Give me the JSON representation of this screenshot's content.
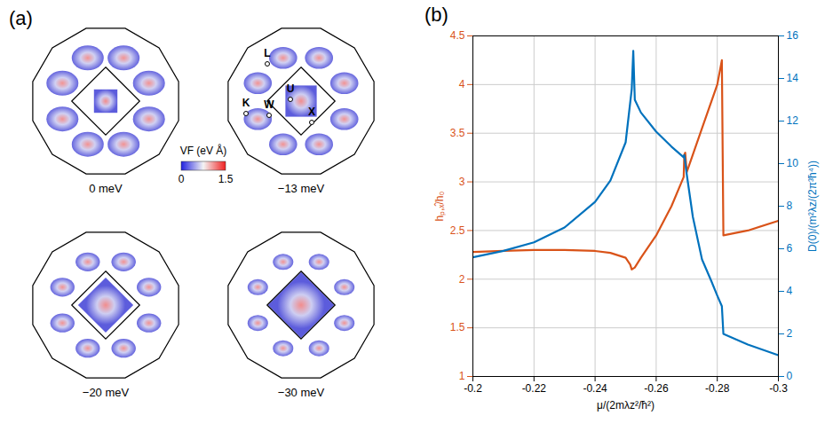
{
  "figure_a": {
    "panel_label": "(a)",
    "captions": [
      "0 meV",
      "−13 meV",
      "−20 meV",
      "−30 meV"
    ],
    "points": [
      "L",
      "K",
      "W",
      "U",
      "X"
    ],
    "colorbar": {
      "title": "VF (eV Å)",
      "range": [
        0,
        1.5
      ],
      "ticks": [
        0,
        1.5
      ]
    }
  },
  "chart_data": {
    "type": "line",
    "panel_label": "(b)",
    "xlabel": "μ/(2mλz²/ħ²)",
    "ylabel": "hₚ,ₓ̂/h₀",
    "y2label": "D(0)/(m²λz/(2π³ħ⁴))",
    "xlim": [
      -0.2,
      -0.3
    ],
    "xticks": [
      -0.2,
      -0.22,
      -0.24,
      -0.26,
      -0.28,
      -0.3
    ],
    "ylim": [
      1,
      4.5
    ],
    "yticks": [
      1,
      1.5,
      2,
      2.5,
      3,
      3.5,
      4,
      4.5
    ],
    "y2lim": [
      0,
      16
    ],
    "y2ticks": [
      0,
      2,
      4,
      6,
      8,
      10,
      12,
      14,
      16
    ],
    "grid": true,
    "series": [
      {
        "name": "hₚ,ₓ̂/h₀",
        "color": "#D95319",
        "x": [
          -0.2,
          -0.21,
          -0.22,
          -0.23,
          -0.24,
          -0.245,
          -0.25,
          -0.2515,
          -0.252,
          -0.253,
          -0.255,
          -0.26,
          -0.265,
          -0.269,
          -0.2692,
          -0.2695,
          -0.27,
          -0.275,
          -0.28,
          -0.2815,
          -0.282,
          -0.29,
          -0.3
        ],
        "values": [
          2.28,
          2.29,
          2.3,
          2.3,
          2.29,
          2.27,
          2.22,
          2.15,
          2.1,
          2.12,
          2.22,
          2.45,
          2.75,
          3.05,
          3.28,
          3.3,
          3.1,
          3.55,
          4.0,
          4.25,
          2.45,
          2.5,
          2.6
        ]
      },
      {
        "name": "D(0)/(m²λz/(2π³ħ⁴))",
        "color": "#0072BD",
        "axis": "y2",
        "x": [
          -0.2,
          -0.21,
          -0.22,
          -0.23,
          -0.24,
          -0.245,
          -0.25,
          -0.252,
          -0.2525,
          -0.253,
          -0.255,
          -0.26,
          -0.265,
          -0.269,
          -0.2692,
          -0.27,
          -0.272,
          -0.275,
          -0.278,
          -0.28,
          -0.2815,
          -0.282,
          -0.29,
          -0.3
        ],
        "values": [
          5.6,
          5.9,
          6.3,
          7.0,
          8.2,
          9.2,
          11.0,
          13.5,
          15.3,
          13.0,
          12.4,
          11.5,
          10.8,
          10.3,
          10.4,
          9.5,
          7.5,
          5.5,
          4.5,
          3.8,
          3.3,
          2.0,
          1.5,
          1.0
        ]
      }
    ]
  }
}
